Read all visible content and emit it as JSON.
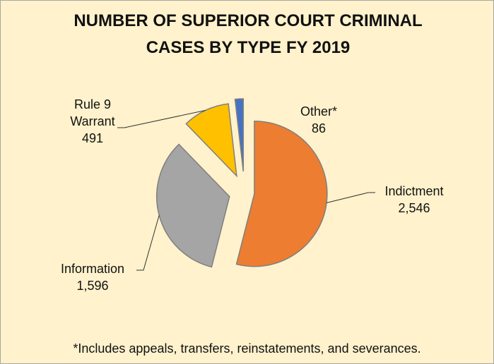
{
  "chart_data": {
    "type": "pie",
    "title": "NUMBER OF SUPERIOR COURT CRIMINAL CASES BY TYPE FY 2019",
    "categories": [
      "Indictment",
      "Information",
      "Rule 9 Warrant",
      "Other*"
    ],
    "values": [
      2546,
      1596,
      491,
      86
    ],
    "value_labels": [
      "2,546",
      "1,596",
      "491",
      "86"
    ],
    "colors": [
      "#ED7D31",
      "#A5A5A5",
      "#FFC000",
      "#4472C4"
    ],
    "footnote": "*Includes appeals, transfers, reinstatements, and severances."
  }
}
